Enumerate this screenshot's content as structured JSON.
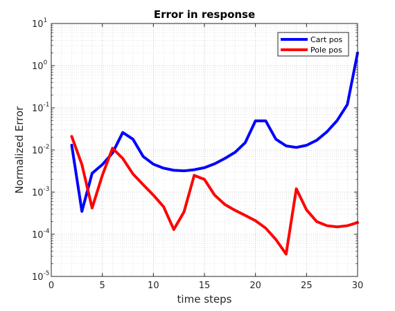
{
  "chart_data": {
    "type": "line",
    "title": "Error in response",
    "xlabel": "time steps",
    "ylabel": "Normalized Error",
    "xlim": [
      0,
      30
    ],
    "ylim": [
      1e-05,
      10
    ],
    "yscale": "log",
    "grid": "major and minor",
    "legend_position": "top-right",
    "xticks": [
      0,
      5,
      10,
      15,
      20,
      25,
      30
    ],
    "yticks": [
      {
        "value": 1e-05,
        "base": "10",
        "exp": "-5"
      },
      {
        "value": 0.0001,
        "base": "10",
        "exp": "-4"
      },
      {
        "value": 0.001,
        "base": "10",
        "exp": "-3"
      },
      {
        "value": 0.01,
        "base": "10",
        "exp": "-2"
      },
      {
        "value": 0.1,
        "base": "10",
        "exp": "-1"
      },
      {
        "value": 1,
        "base": "10",
        "exp": "0"
      },
      {
        "value": 10,
        "base": "10",
        "exp": "1"
      }
    ],
    "x": [
      2,
      3,
      4,
      5,
      6,
      7,
      8,
      9,
      10,
      11,
      12,
      13,
      14,
      15,
      16,
      17,
      18,
      19,
      20,
      21,
      22,
      23,
      24,
      25,
      26,
      27,
      28,
      29,
      30
    ],
    "series": [
      {
        "name": "Cart pos",
        "color": "#0000ff",
        "values": [
          0.013,
          0.00035,
          0.0028,
          0.0045,
          0.0085,
          0.026,
          0.018,
          0.007,
          0.0046,
          0.0037,
          0.0033,
          0.0032,
          0.0034,
          0.0038,
          0.0047,
          0.0063,
          0.0088,
          0.015,
          0.049,
          0.049,
          0.018,
          0.0125,
          0.0115,
          0.0129,
          0.017,
          0.027,
          0.05,
          0.12,
          2.0
        ]
      },
      {
        "name": "Pole pos",
        "color": "#ff0000",
        "values": [
          0.021,
          0.0045,
          0.00042,
          0.0025,
          0.011,
          0.0063,
          0.0027,
          0.0015,
          0.00085,
          0.00045,
          0.00013,
          0.00034,
          0.0025,
          0.002,
          0.00085,
          0.00051,
          0.00037,
          0.00028,
          0.00021,
          0.00014,
          7.5e-05,
          3.4e-05,
          0.0012,
          0.00038,
          0.0002,
          0.00016,
          0.00015,
          0.00016,
          0.00019
        ]
      }
    ]
  }
}
